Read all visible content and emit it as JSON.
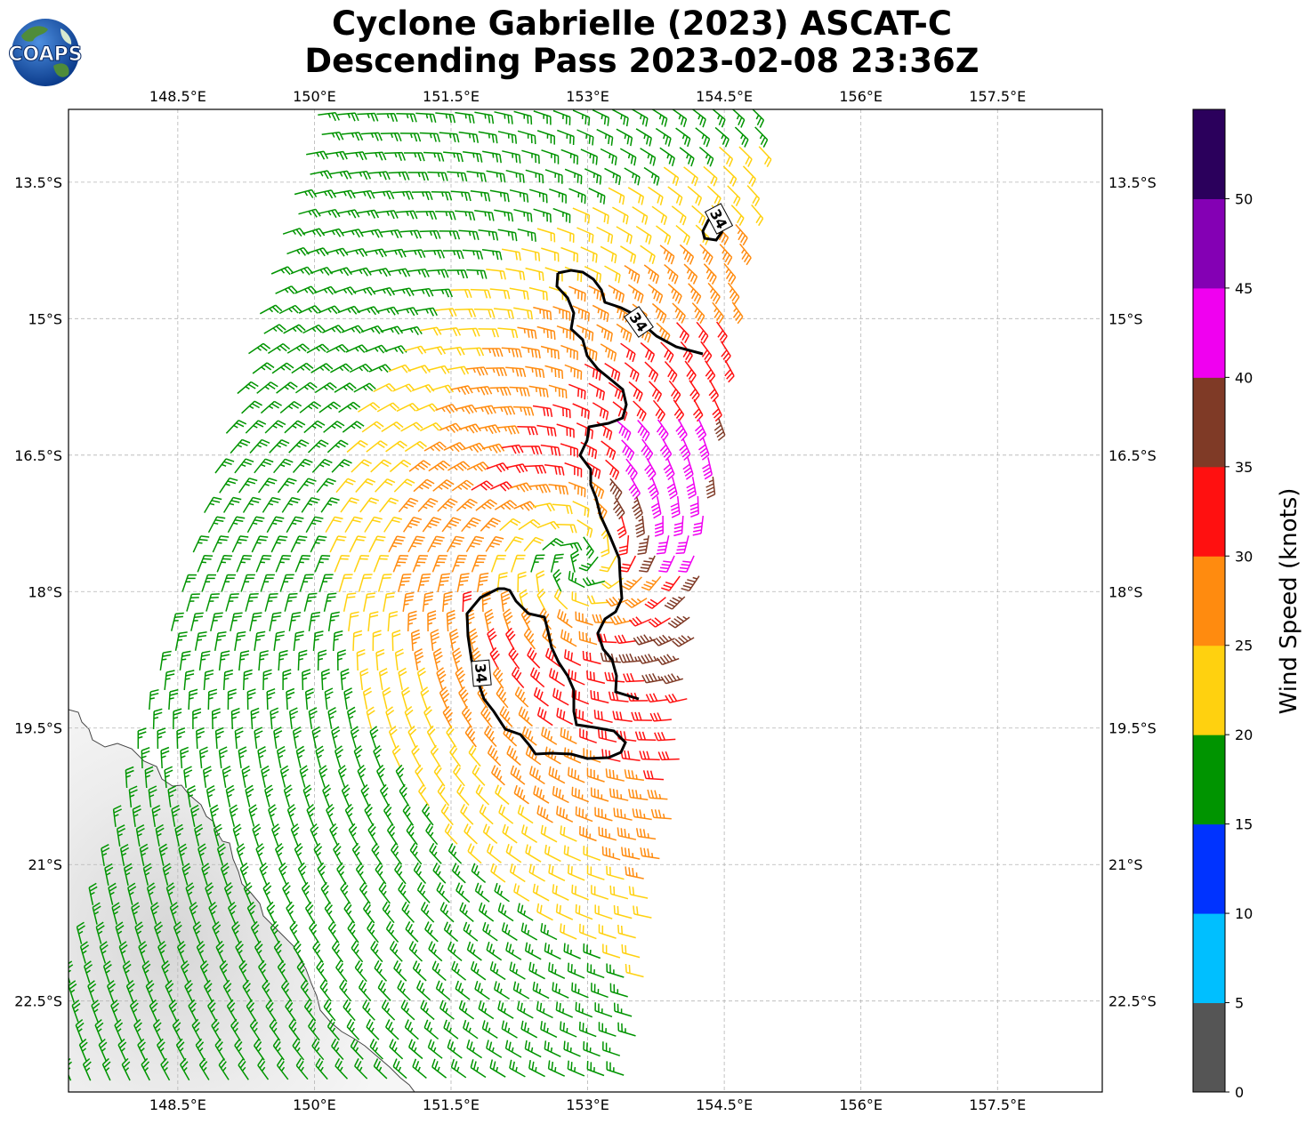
{
  "logo": {
    "text": "COAPS",
    "icon": "coaps-globe-logo"
  },
  "title": {
    "line1": "Cyclone Gabrielle (2023) ASCAT-C",
    "line2": "Descending Pass 2023-02-08 23:36Z"
  },
  "map": {
    "lon_ticks": [
      "148.5°E",
      "150°E",
      "151.5°E",
      "153°E",
      "154.5°E",
      "156°E",
      "157.5°E"
    ],
    "lat_ticks": [
      "13.5°S",
      "15°S",
      "16.5°S",
      "18°S",
      "19.5°S",
      "21°S",
      "22.5°S"
    ],
    "lon_values": [
      148.5,
      150,
      151.5,
      153,
      154.5,
      156,
      157.5
    ],
    "lat_values": [
      -13.5,
      -15,
      -16.5,
      -18,
      -19.5,
      -21,
      -22.5
    ],
    "extent": {
      "lon_min": 147.3,
      "lon_max": 158.65,
      "lat_min": -23.5,
      "lat_max": -12.7
    },
    "grid": true,
    "contour_labels": [
      "34",
      "34",
      "34"
    ],
    "contour_level_kt": 34
  },
  "colorbar": {
    "label": "Wind Speed (knots)",
    "tick_labels": [
      "0",
      "5",
      "10",
      "15",
      "20",
      "25",
      "30",
      "35",
      "40",
      "45",
      "50"
    ],
    "bins": [
      {
        "min": 0,
        "max": 5,
        "color": "#555555"
      },
      {
        "min": 5,
        "max": 10,
        "color": "#00bfff"
      },
      {
        "min": 10,
        "max": 15,
        "color": "#0033ff"
      },
      {
        "min": 15,
        "max": 20,
        "color": "#009400"
      },
      {
        "min": 20,
        "max": 25,
        "color": "#ffd10f"
      },
      {
        "min": 25,
        "max": 30,
        "color": "#ff8b0f"
      },
      {
        "min": 30,
        "max": 35,
        "color": "#ff1010"
      },
      {
        "min": 35,
        "max": 40,
        "color": "#7f3a26"
      },
      {
        "min": 40,
        "max": 45,
        "color": "#f000f0"
      },
      {
        "min": 45,
        "max": 50,
        "color": "#8400b4"
      },
      {
        "min": 50,
        "max": 55,
        "color": "#2b005c"
      }
    ]
  },
  "wind_field": {
    "center": {
      "lon": 152.9,
      "lat": -17.65
    },
    "swath_edges_lon_at_lat": {
      "lats": [
        -12.7,
        -23.5
      ],
      "west": [
        150.15,
        146.9
      ],
      "east": [
        155.05,
        153.35
      ]
    }
  }
}
